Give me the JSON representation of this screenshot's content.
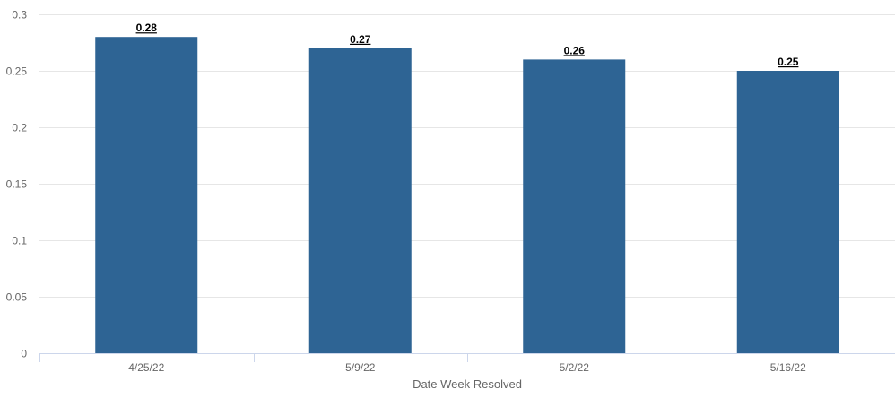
{
  "chart_data": {
    "type": "bar",
    "title": "",
    "xlabel": "Date Week Resolved",
    "ylabel": "",
    "categories": [
      "4/25/22",
      "5/9/22",
      "5/2/22",
      "5/16/22"
    ],
    "values": [
      0.28,
      0.27,
      0.26,
      0.25
    ],
    "data_labels": [
      "0.28",
      "0.27",
      "0.26",
      "0.25"
    ],
    "ylim": [
      0,
      0.3
    ],
    "yticks": [
      0,
      0.05,
      0.1,
      0.15,
      0.2,
      0.25,
      0.3
    ],
    "ytick_labels": [
      "0",
      "0.05",
      "0.1",
      "0.15",
      "0.2",
      "0.25",
      "0.3"
    ],
    "grid": true,
    "legend": "none",
    "colors": {
      "bar": "#2e6494"
    }
  }
}
